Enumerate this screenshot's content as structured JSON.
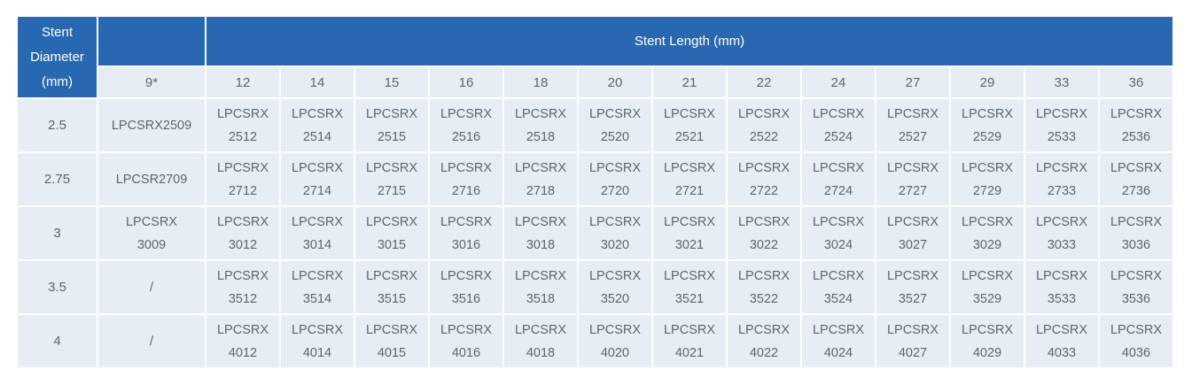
{
  "colors": {
    "header_blue": "#2768b0",
    "cell_background": "#e7edf5",
    "header_text": "#ffffff",
    "cell_text": "#5c6670",
    "gridline": "#ffffff"
  },
  "table": {
    "diameter_header": "Stent\nDiameter\n(mm)",
    "length_header": "Stent Length (mm)",
    "column_headers": [
      "9*",
      "12",
      "14",
      "15",
      "16",
      "18",
      "20",
      "21",
      "22",
      "24",
      "27",
      "29",
      "33",
      "36"
    ],
    "rows": [
      {
        "diameter": "2.5",
        "cells": [
          "LPCSRX2509",
          "LPCSRX\n2512",
          "LPCSRX\n2514",
          "LPCSRX\n2515",
          "LPCSRX\n2516",
          "LPCSRX\n2518",
          "LPCSRX\n2520",
          "LPCSRX\n2521",
          "LPCSRX\n2522",
          "LPCSRX\n2524",
          "LPCSRX\n2527",
          "LPCSRX\n2529",
          "LPCSRX\n2533",
          "LPCSRX\n2536"
        ]
      },
      {
        "diameter": "2.75",
        "cells": [
          "LPCSR2709",
          "LPCSRX\n2712",
          "LPCSRX\n2714",
          "LPCSRX\n2715",
          "LPCSRX\n2716",
          "LPCSRX\n2718",
          "LPCSRX\n2720",
          "LPCSRX\n2721",
          "LPCSRX\n2722",
          "LPCSRX\n2724",
          "LPCSRX\n2727",
          "LPCSRX\n2729",
          "LPCSRX\n2733",
          "LPCSRX\n2736"
        ]
      },
      {
        "diameter": "3",
        "cells": [
          "LPCSRX\n3009",
          "LPCSRX\n3012",
          "LPCSRX\n3014",
          "LPCSRX\n3015",
          "LPCSRX\n3016",
          "LPCSRX\n3018",
          "LPCSRX\n3020",
          "LPCSRX\n3021",
          "LPCSRX\n3022",
          "LPCSRX\n3024",
          "LPCSRX\n3027",
          "LPCSRX\n3029",
          "LPCSRX\n3033",
          "LPCSRX\n3036"
        ]
      },
      {
        "diameter": "3.5",
        "cells": [
          "/",
          "LPCSRX\n3512",
          "LPCSRX\n3514",
          "LPCSRX\n3515",
          "LPCSRX\n3516",
          "LPCSRX\n3518",
          "LPCSRX\n3520",
          "LPCSRX\n3521",
          "LPCSRX\n3522",
          "LPCSRX\n3524",
          "LPCSRX\n3527",
          "LPCSRX\n3529",
          "LPCSRX\n3533",
          "LPCSRX\n3536"
        ]
      },
      {
        "diameter": "4",
        "cells": [
          "/",
          "LPCSRX\n4012",
          "LPCSRX\n4014",
          "LPCSRX\n4015",
          "LPCSRX\n4016",
          "LPCSRX\n4018",
          "LPCSRX\n4020",
          "LPCSRX\n4021",
          "LPCSRX\n4022",
          "LPCSRX\n4024",
          "LPCSRX\n4027",
          "LPCSRX\n4029",
          "LPCSRX\n4033",
          "LPCSRX\n4036"
        ]
      }
    ]
  }
}
